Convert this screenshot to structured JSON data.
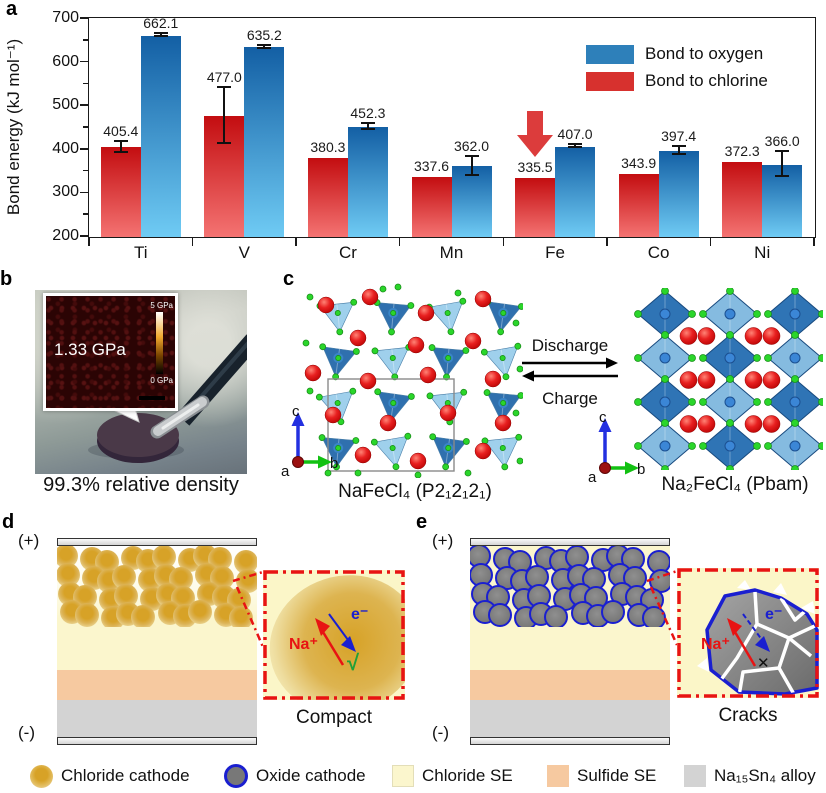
{
  "panel_labels": {
    "a": "a",
    "b": "b",
    "c": "c",
    "d": "d",
    "e": "e"
  },
  "chart_data": {
    "type": "bar",
    "title": "",
    "xlabel": "",
    "ylabel": "Bond energy (kJ mol⁻¹)",
    "ylim": [
      200,
      700
    ],
    "yticks": [
      200,
      300,
      400,
      500,
      600,
      700
    ],
    "grid": false,
    "categories": [
      "Ti",
      "V",
      "Cr",
      "Mn",
      "Fe",
      "Co",
      "Ni"
    ],
    "series": [
      {
        "name": "Bond to chlorine",
        "color": "#d7312e",
        "gradient_top": "#c30d10",
        "gradient_bottom": "#f47372",
        "values": [
          405.4,
          477.0,
          380.3,
          337.6,
          335.5,
          343.9,
          372.3
        ],
        "value_labels": [
          "405.4",
          "477.0",
          "380.3",
          "337.6",
          "335.5",
          "343.9",
          "372.3"
        ],
        "errors": [
          12,
          64,
          0,
          0,
          0,
          0,
          0
        ]
      },
      {
        "name": "Bond to oxygen",
        "color": "#2e80ba",
        "gradient_top": "#135fa4",
        "gradient_bottom": "#6fcbf4",
        "values": [
          662.1,
          635.2,
          452.3,
          362.0,
          407.0,
          397.4,
          366.0
        ],
        "value_labels": [
          "662.1",
          "635.2",
          "452.3",
          "362.0",
          "407.0",
          "397.4",
          "366.0"
        ],
        "errors": [
          4,
          4,
          6,
          22,
          4,
          10,
          28
        ]
      }
    ],
    "legend": [
      {
        "label": "Bond to oxygen",
        "color": "#2e80ba"
      },
      {
        "label": "Bond to chlorine",
        "color": "#d7312e"
      }
    ],
    "legend_position": "top-right",
    "annotation": {
      "type": "down-arrow",
      "category": "Fe",
      "series": "Bond to chlorine",
      "color": "#dc3c3c"
    }
  },
  "panel_b": {
    "inset_value": "1.33 GPa",
    "scale_max": "5 GPa",
    "scale_min": "0 GPa",
    "caption": "99.3% relative density"
  },
  "panel_c": {
    "left_formula": "NaFeCl₄ (P2₁2₁2₁)",
    "right_formula": "Na₂FeCl₄ (Pbam)",
    "forward": "Discharge",
    "backward": "Charge",
    "axes": {
      "a": "a",
      "b": "b",
      "c": "c"
    }
  },
  "panel_d": {
    "positive": "(+)",
    "negative": "(-)",
    "ion": "Na⁺",
    "electron": "e⁻",
    "check": "√",
    "caption": "Compact"
  },
  "panel_e": {
    "positive": "(+)",
    "negative": "(-)",
    "ion": "Na⁺",
    "electron": "e⁻",
    "cross": "✕",
    "caption": "Cracks"
  },
  "bottom_legend": [
    {
      "label": "Chloride cathode",
      "swatch": "gold-circle"
    },
    {
      "label": "Oxide cathode",
      "swatch": "oxide-circle"
    },
    {
      "label": "Chloride SE",
      "swatch": "chloride-square"
    },
    {
      "label": "Sulfide SE",
      "swatch": "sulfide-square"
    },
    {
      "label": "Na₁₅Sn₄ alloy",
      "swatch": "alloy-square"
    }
  ],
  "colors": {
    "chloride_se": "#fbf6cd",
    "sulfide_se": "#f6c9a0",
    "alloy": "#d3d3d3",
    "oxide_fill": "#787878",
    "oxide_border": "#1a1fd0",
    "zoom_border": "#e81313",
    "na_label": "#e81313",
    "electron_label": "#1a1fd0"
  }
}
